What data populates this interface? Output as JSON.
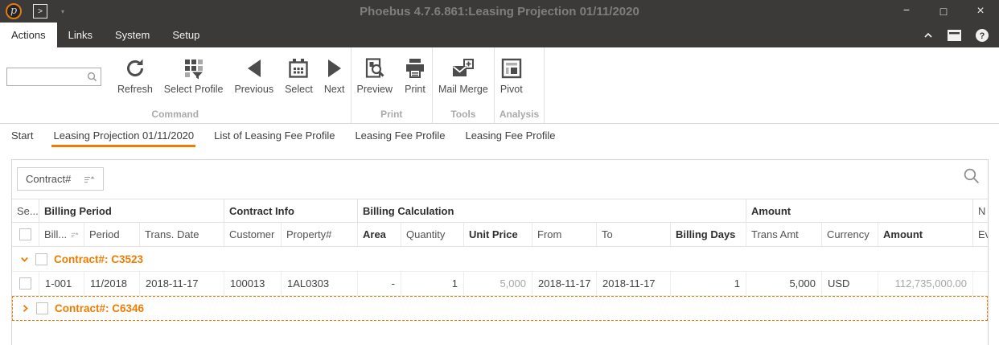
{
  "colors": {
    "accent": "#ef7c00",
    "chrome_bg": "#3b3a39"
  },
  "titlebar": {
    "title": "Phoebus 4.7.6.861:Leasing Projection 01/11/2020",
    "app_logo_letter": "p",
    "quick_access_glyph": ">",
    "quick_access_caret": "▾",
    "window_buttons": {
      "minimize": "−",
      "maximize": "□",
      "close": "×"
    }
  },
  "menubar": {
    "items": [
      {
        "label": "Actions",
        "active": true
      },
      {
        "label": "Links",
        "active": false
      },
      {
        "label": "System",
        "active": false
      },
      {
        "label": "Setup",
        "active": false
      }
    ]
  },
  "ribbon": {
    "search": {
      "value": "",
      "placeholder": ""
    },
    "groups": [
      {
        "label": "Command",
        "buttons": [
          {
            "label": "Refresh",
            "icon": "refresh-icon"
          },
          {
            "label": "Select Profile",
            "icon": "select-profile-icon"
          },
          {
            "label": "Previous",
            "icon": "previous-icon"
          },
          {
            "label": "Select",
            "icon": "calendar-icon"
          },
          {
            "label": "Next",
            "icon": "next-icon"
          }
        ]
      },
      {
        "label": "Print",
        "buttons": [
          {
            "label": "Preview",
            "icon": "print-preview-icon"
          },
          {
            "label": "Print",
            "icon": "printer-icon"
          }
        ]
      },
      {
        "label": "Tools",
        "buttons": [
          {
            "label": "Mail Merge",
            "icon": "mail-merge-icon"
          }
        ]
      },
      {
        "label": "Analysis",
        "buttons": [
          {
            "label": "Pivot",
            "icon": "pivot-table-icon"
          }
        ]
      }
    ]
  },
  "doc_tabs": [
    {
      "label": "Start",
      "active": false
    },
    {
      "label": "Leasing Projection 01/11/2020",
      "active": true
    },
    {
      "label": "List of Leasing Fee Profile",
      "active": false
    },
    {
      "label": "Leasing Fee Profile",
      "active": false
    },
    {
      "label": "Leasing Fee Profile",
      "active": false
    }
  ],
  "grid": {
    "group_panel": {
      "chip": "Contract#",
      "sort": "ascending"
    },
    "bands": [
      {
        "label": "Se...",
        "bold": false,
        "cols": 1
      },
      {
        "label": "Billing Period",
        "bold": true,
        "cols": 3
      },
      {
        "label": "Contract Info",
        "bold": true,
        "cols": 2
      },
      {
        "label": "Billing Calculation",
        "bold": true,
        "cols": 6
      },
      {
        "label": "Amount",
        "bold": true,
        "cols": 3
      },
      {
        "label": "N",
        "bold": false,
        "cols": 1
      }
    ],
    "columns": [
      {
        "key": "sel",
        "label": "",
        "type": "checkbox",
        "width": 34
      },
      {
        "key": "bill",
        "label": "Bill...",
        "sort": "ascending",
        "width": 56
      },
      {
        "key": "period",
        "label": "Period",
        "width": 69
      },
      {
        "key": "trans_date",
        "label": "Trans. Date",
        "width": 105
      },
      {
        "key": "customer",
        "label": "Customer",
        "width": 71
      },
      {
        "key": "property",
        "label": "Property#",
        "width": 95
      },
      {
        "key": "area",
        "label": "Area",
        "bold": true,
        "align": "right",
        "width": 54
      },
      {
        "key": "quantity",
        "label": "Quantity",
        "align": "right",
        "width": 78
      },
      {
        "key": "unit_price",
        "label": "Unit Price",
        "bold": true,
        "align": "right",
        "muted": true,
        "width": 85
      },
      {
        "key": "from",
        "label": "From",
        "width": 80
      },
      {
        "key": "to",
        "label": "To",
        "width": 92
      },
      {
        "key": "billing_days",
        "label": "Billing Days",
        "bold": true,
        "align": "right",
        "width": 94
      },
      {
        "key": "trans_amt",
        "label": "Trans Amt",
        "align": "right",
        "width": 94
      },
      {
        "key": "currency",
        "label": "Currency",
        "width": 70
      },
      {
        "key": "amount",
        "label": "Amount",
        "bold": true,
        "align": "right",
        "muted": true,
        "width": 118
      },
      {
        "key": "ev",
        "label": "Ev",
        "width": 40
      }
    ],
    "rows": [
      {
        "type": "group",
        "expanded": true,
        "label": "Contract#: C3523"
      },
      {
        "type": "data",
        "cells": {
          "bill": "1-001",
          "period": "11/2018",
          "trans_date": "2018-11-17",
          "customer": "100013",
          "property": "1AL0303",
          "area": "-",
          "quantity": "1",
          "unit_price": "5,000",
          "from": "2018-11-17",
          "to": "2018-11-17",
          "billing_days": "1",
          "trans_amt": "5,000",
          "currency": "USD",
          "amount": "112,735,000.00",
          "ev": ""
        }
      },
      {
        "type": "group",
        "expanded": false,
        "focused": true,
        "label": "Contract#: C6346"
      }
    ]
  }
}
